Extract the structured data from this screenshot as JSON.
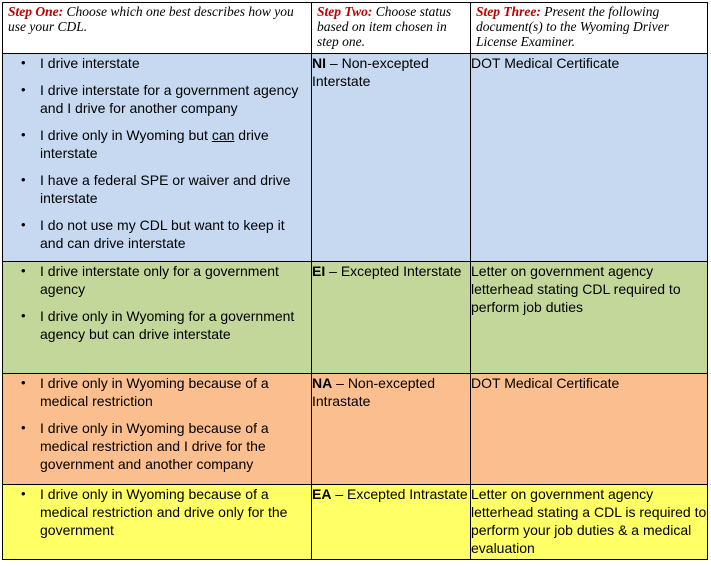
{
  "header": {
    "step1": {
      "name": "Step One:",
      "desc": "Choose which one best describes how you use your CDL."
    },
    "step2": {
      "name": "Step Two:",
      "desc": "Choose status based on item chosen in step one."
    },
    "step3": {
      "name": "Step Three:",
      "desc": "Present the following document(s) to the Wyoming Driver License Examiner."
    }
  },
  "rows": [
    {
      "color": "#c6d9f1",
      "uses": [
        "I drive interstate",
        "I drive interstate for a government agency and I drive for another company",
        "I drive only in Wyoming but can drive interstate",
        "I have a federal SPE or waiver and drive interstate",
        "I do not use my CDL but want to keep it and can drive interstate"
      ],
      "code": "NI",
      "status": "Non-excepted Interstate",
      "document": "DOT Medical Certificate"
    },
    {
      "color": "#c4d79b",
      "uses": [
        "I drive interstate only for a government agency",
        "I drive only in Wyoming for a government agency but can drive interstate"
      ],
      "code": "EI",
      "status": "Excepted Interstate",
      "document": "Letter on government agency letterhead stating CDL required to perform job duties"
    },
    {
      "color": "#fbbf8f",
      "uses": [
        "I drive only in Wyoming because of a medical restriction",
        "I drive only in Wyoming because of a medical restriction and I drive for the government and another company"
      ],
      "code": "NA",
      "status": "Non-excepted Intrastate",
      "document": "DOT Medical Certificate"
    },
    {
      "color": "#ffff66",
      "uses": [
        "I drive only in Wyoming because of a medical restriction and drive only for the government"
      ],
      "code": "EA",
      "status": "Excepted Intrastate",
      "document": "Letter on government agency letterhead stating a CDL is required to perform your job duties & a medical evaluation"
    }
  ]
}
